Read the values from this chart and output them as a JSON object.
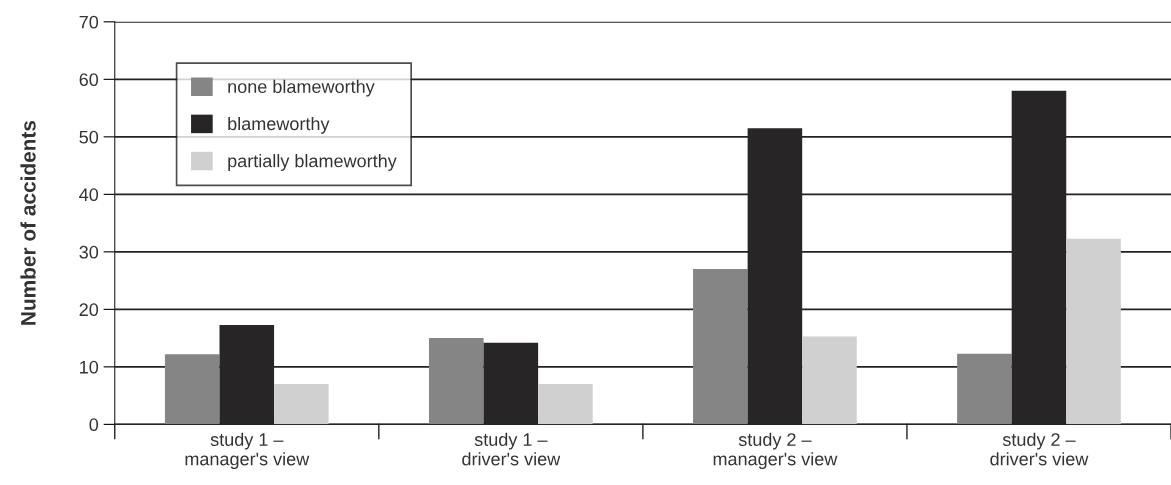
{
  "chart_data": {
    "type": "bar",
    "ylabel": "Number of accidents",
    "categories": [
      "study 1 –\nmanager's view",
      "study 1 –\ndriver's view",
      "study 2 –\nmanager's view",
      "study 2 –\ndriver's view"
    ],
    "series": [
      {
        "name": "none blameworthy",
        "color": "#858585",
        "values": [
          12.2,
          15,
          27,
          12.3
        ]
      },
      {
        "name": "blameworthy",
        "color": "#282526",
        "values": [
          17.3,
          14.2,
          51.5,
          58
        ]
      },
      {
        "name": "partially blameworthy",
        "color": "#d0d0d0",
        "values": [
          7,
          7,
          15.3,
          32.3
        ]
      }
    ],
    "ylim": [
      0,
      70
    ],
    "yticks": [
      0,
      10,
      20,
      30,
      40,
      50,
      60,
      70
    ],
    "grid": "y",
    "legend": "top left"
  }
}
